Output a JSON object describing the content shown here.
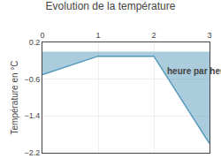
{
  "chart_data": {
    "type": "area",
    "title": "Evolution de la température",
    "ylabel": "Température en °C",
    "x": [
      0,
      1,
      2,
      3
    ],
    "values": [
      -0.5,
      -0.1,
      -0.1,
      -2.0
    ],
    "color": "#5599bb",
    "xlim": [
      0,
      3
    ],
    "ylim": [
      -2.2,
      0.2
    ],
    "xticks": [
      0,
      1,
      2,
      3
    ],
    "yticks": [
      0.2,
      -0.6,
      -1.4,
      -2.2
    ],
    "grid": true,
    "annotations": [
      {
        "text": "heure par heure",
        "x": 2.2,
        "y": -0.42
      }
    ]
  }
}
